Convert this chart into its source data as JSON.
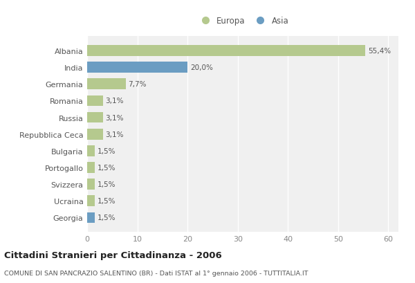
{
  "categories": [
    "Albania",
    "India",
    "Germania",
    "Romania",
    "Russia",
    "Repubblica Ceca",
    "Bulgaria",
    "Portogallo",
    "Svizzera",
    "Ucraina",
    "Georgia"
  ],
  "values": [
    55.4,
    20.0,
    7.7,
    3.1,
    3.1,
    3.1,
    1.5,
    1.5,
    1.5,
    1.5,
    1.5
  ],
  "labels": [
    "55,4%",
    "20,0%",
    "7,7%",
    "3,1%",
    "3,1%",
    "3,1%",
    "1,5%",
    "1,5%",
    "1,5%",
    "1,5%",
    "1,5%"
  ],
  "colors": [
    "#b5c98e",
    "#6b9dc2",
    "#b5c98e",
    "#b5c98e",
    "#b5c98e",
    "#b5c98e",
    "#b5c98e",
    "#b5c98e",
    "#b5c98e",
    "#b5c98e",
    "#6b9dc2"
  ],
  "legend_europa_color": "#b5c98e",
  "legend_asia_color": "#6b9dc2",
  "xlim": [
    0,
    62
  ],
  "xticks": [
    0,
    10,
    20,
    30,
    40,
    50,
    60
  ],
  "title": "Cittadini Stranieri per Cittadinanza - 2006",
  "subtitle": "COMUNE DI SAN PANCRAZIO SALENTINO (BR) - Dati ISTAT al 1° gennaio 2006 - TUTTITALIA.IT",
  "background_color": "#ffffff",
  "plot_background_color": "#f0f0f0",
  "grid_color": "#ffffff",
  "bar_height": 0.65
}
